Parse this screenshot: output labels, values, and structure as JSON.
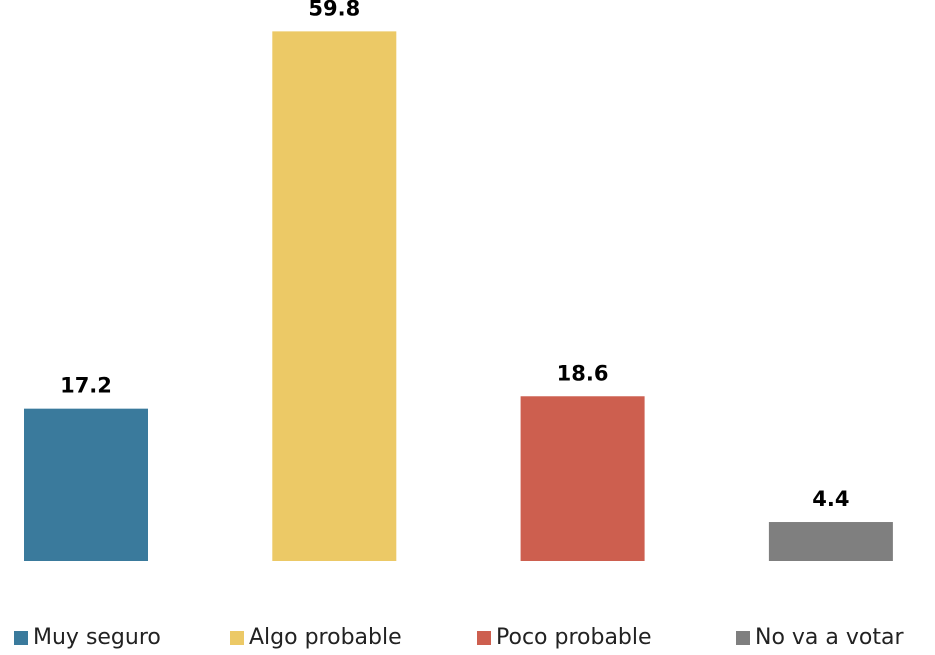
{
  "chart_data": {
    "type": "bar",
    "series": [
      {
        "name": "Muy seguro",
        "color": "#3a7a9c",
        "values": [
          17.2
        ]
      },
      {
        "name": "Algo probable",
        "color": "#ecc966",
        "values": [
          59.8
        ]
      },
      {
        "name": "Poco probable",
        "color": "#cd5f4f",
        "values": [
          18.6
        ]
      },
      {
        "name": "No va a votar",
        "color": "#7f7f7f",
        "values": [
          4.4
        ]
      }
    ],
    "ylim": [
      0,
      60
    ],
    "legend": "bottom"
  }
}
